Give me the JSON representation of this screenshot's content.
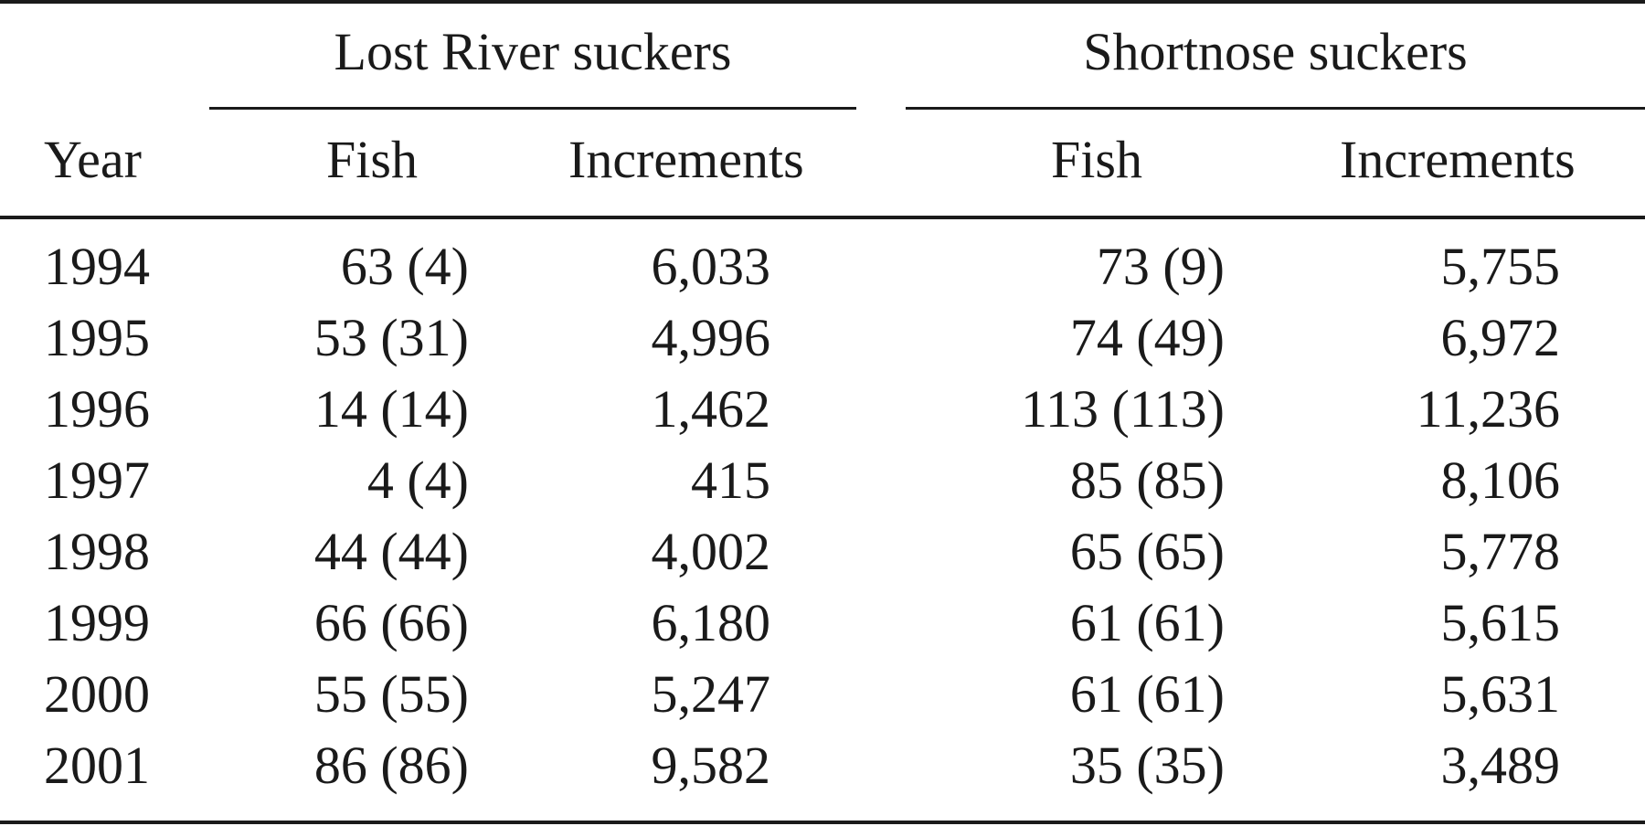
{
  "table": {
    "group_headers": {
      "lost_river": "Lost River suckers",
      "shortnose": "Shortnose suckers"
    },
    "column_headers": {
      "year": "Year",
      "lr_fish": "Fish",
      "lr_increments": "Increments",
      "sn_fish": "Fish",
      "sn_increments": "Increments"
    },
    "rows": [
      {
        "year": "1994",
        "lr_fish": "63 (4)",
        "lr_increments": "6,033",
        "sn_fish": "73 (9)",
        "sn_increments": "5,755"
      },
      {
        "year": "1995",
        "lr_fish": "53 (31)",
        "lr_increments": "4,996",
        "sn_fish": "74 (49)",
        "sn_increments": "6,972"
      },
      {
        "year": "1996",
        "lr_fish": "14 (14)",
        "lr_increments": "1,462",
        "sn_fish": "113 (113)",
        "sn_increments": "11,236"
      },
      {
        "year": "1997",
        "lr_fish": "4 (4)",
        "lr_increments": "415",
        "sn_fish": "85 (85)",
        "sn_increments": "8,106"
      },
      {
        "year": "1998",
        "lr_fish": "44 (44)",
        "lr_increments": "4,002",
        "sn_fish": "65 (65)",
        "sn_increments": "5,778"
      },
      {
        "year": "1999",
        "lr_fish": "66 (66)",
        "lr_increments": "6,180",
        "sn_fish": "61 (61)",
        "sn_increments": "5,615"
      },
      {
        "year": "2000",
        "lr_fish": "55 (55)",
        "lr_increments": "5,247",
        "sn_fish": "61 (61)",
        "sn_increments": "5,631"
      },
      {
        "year": "2001",
        "lr_fish": "86 (86)",
        "lr_increments": "9,582",
        "sn_fish": "35 (35)",
        "sn_increments": "3,489"
      }
    ]
  }
}
